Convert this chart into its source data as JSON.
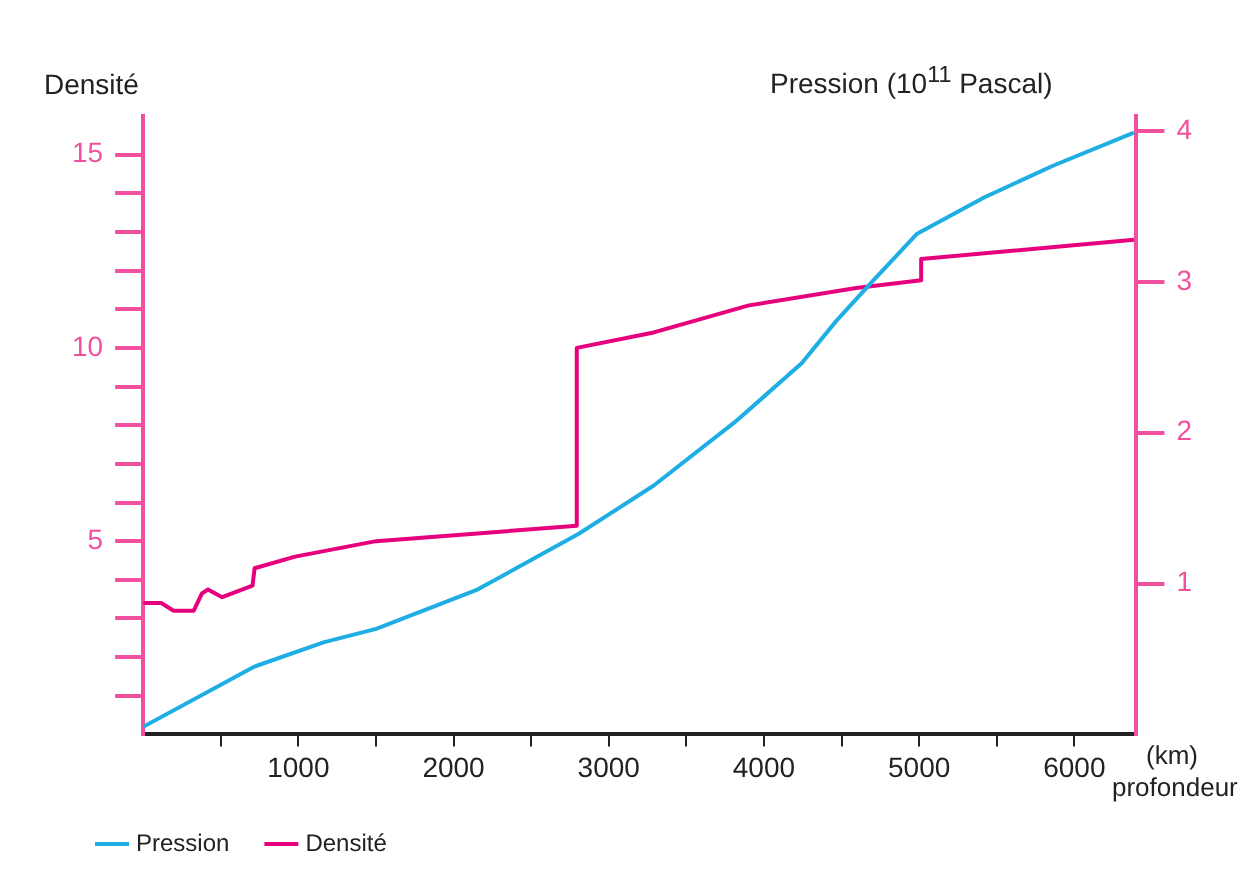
{
  "chart_data": {
    "type": "line",
    "ylabel": "Densité",
    "y2label": "Pression (10$^{11}$ Pascal)",
    "xlabel": "(km) profondeur",
    "xlim": [
      0,
      6400
    ],
    "xticks": [
      {
        "value": 500,
        "label": null
      },
      1000,
      {
        "value": 1500,
        "label": null
      },
      2000,
      {
        "value": 2500,
        "label": null
      },
      3000,
      {
        "value": 3500,
        "label": null
      },
      4000,
      {
        "value": 4500,
        "label": null
      },
      5000,
      {
        "value": 5500,
        "label": null
      },
      6000
    ],
    "ylim": [
      0,
      16
    ],
    "yticks": [
      {
        "value": 1,
        "label": null
      },
      {
        "value": 2,
        "label": null
      },
      {
        "value": 3,
        "label": null
      },
      {
        "value": 4,
        "label": null
      },
      5,
      {
        "value": 6,
        "label": null
      },
      {
        "value": 7,
        "label": null
      },
      {
        "value": 8,
        "label": null
      },
      {
        "value": 9,
        "label": null
      },
      10,
      {
        "value": 11,
        "label": null
      },
      {
        "value": 12,
        "label": null
      },
      {
        "value": 13,
        "label": null
      },
      {
        "value": 14,
        "label": null
      },
      15
    ],
    "y2lim": [
      0,
      4.1
    ],
    "y2ticks": [
      1,
      2,
      3,
      4
    ],
    "grid": false,
    "legend": "bottom",
    "marker": "none",
    "line_style": "solid",
    "series": [
      {
        "name": "Pression",
        "color": "#1eaee4",
        "axis": "y2",
        "x": [
          0,
          718,
          1162,
          1501,
          2154,
          2807,
          3290,
          3812,
          4243,
          4465,
          4687,
          4987,
          5418,
          5862,
          6384
        ],
        "values": [
          0.05,
          0.45,
          0.61,
          0.7,
          0.96,
          1.33,
          1.65,
          2.07,
          2.46,
          2.74,
          2.99,
          3.32,
          3.56,
          3.77,
          3.99
        ]
      },
      {
        "name": "Densité",
        "color": "#e6007e",
        "axis": "y",
        "x": [
          0,
          117,
          196,
          326,
          379,
          418,
          509,
          705,
          718,
          979,
          1501,
          2154,
          2794,
          2794,
          3290,
          3903,
          4595,
          5013,
          5013,
          6384
        ],
        "values": [
          3.4,
          3.4,
          3.2,
          3.2,
          3.65,
          3.75,
          3.55,
          3.85,
          4.3,
          4.6,
          5.0,
          5.2,
          5.4,
          10.0,
          10.4,
          11.1,
          11.55,
          11.75,
          12.3,
          12.8
        ]
      }
    ]
  }
}
